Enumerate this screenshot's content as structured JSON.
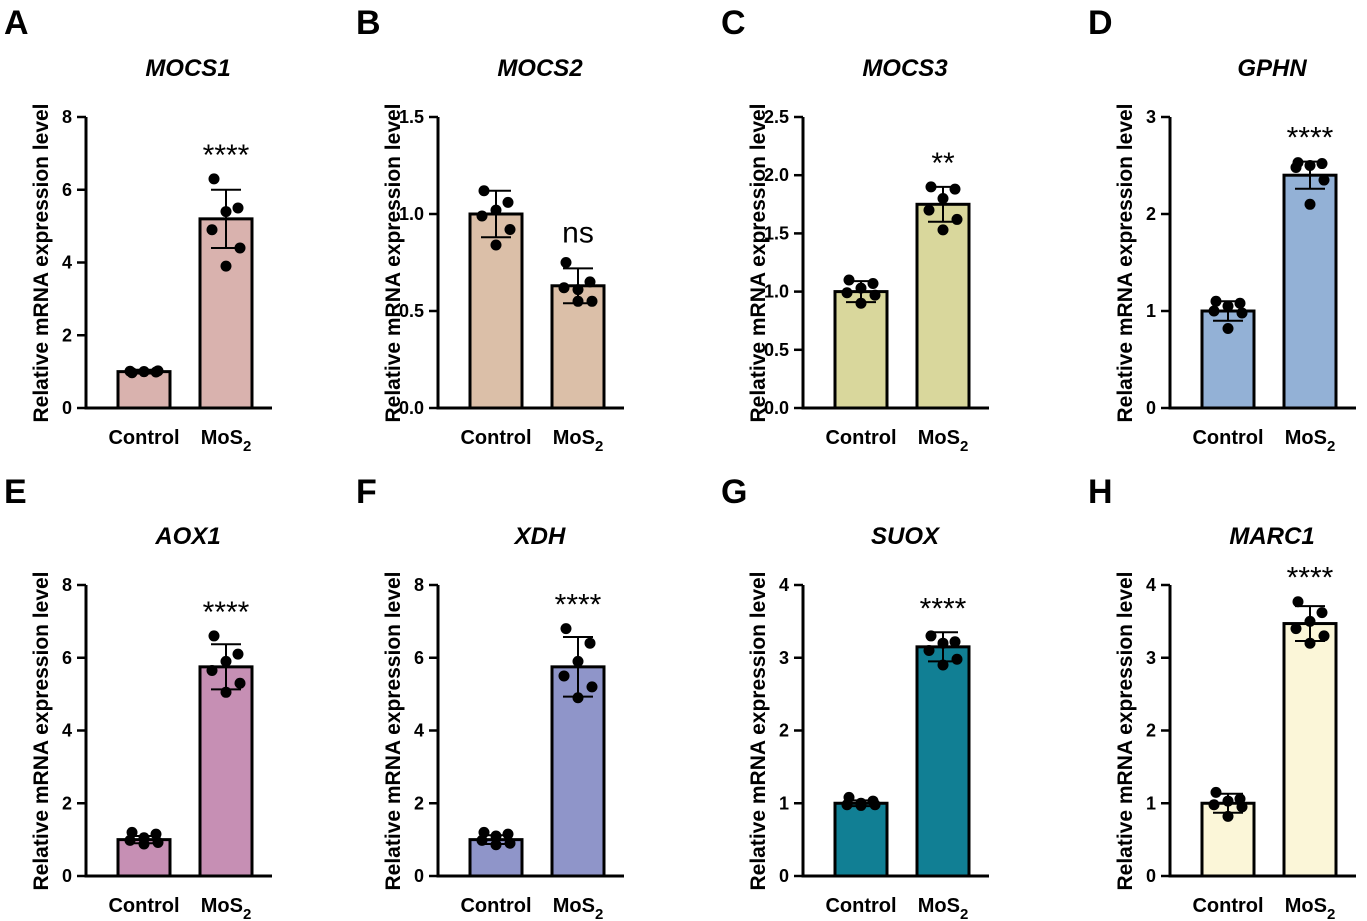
{
  "chart_data": [
    {
      "panel": "A",
      "type": "bar",
      "title": "MOCS1",
      "ylabel": "Relative mRNA expression level",
      "ylim": [
        0,
        8
      ],
      "yticks": [
        "0",
        "2",
        "4",
        "6",
        "8"
      ],
      "categories": [
        "Control",
        "MoS2"
      ],
      "values": [
        1.0,
        5.2
      ],
      "sd": [
        0.05,
        0.8
      ],
      "points": [
        [
          0.97,
          0.99,
          1.0,
          1.01,
          1.02,
          1.0
        ],
        [
          6.3,
          5.5,
          5.4,
          4.9,
          4.4,
          3.9
        ]
      ],
      "significance": "****",
      "color": "#d9b2ae"
    },
    {
      "panel": "B",
      "type": "bar",
      "title": "MOCS2",
      "ylabel": "Relative mRNA expression level",
      "ylim": [
        0,
        1.5
      ],
      "yticks": [
        "0.0",
        "0.5",
        "1.0",
        "1.5"
      ],
      "categories": [
        "Control",
        "MoS2"
      ],
      "values": [
        1.0,
        0.63
      ],
      "sd": [
        0.12,
        0.09
      ],
      "points": [
        [
          1.12,
          1.06,
          1.02,
          0.99,
          0.92,
          0.84
        ],
        [
          0.75,
          0.65,
          0.61,
          0.62,
          0.55,
          0.55
        ]
      ],
      "significance": "ns",
      "color": "#dbbfa8"
    },
    {
      "panel": "C",
      "type": "bar",
      "title": "MOCS3",
      "ylabel": "Relative mRNA expression level",
      "ylim": [
        0,
        2.5
      ],
      "yticks": [
        "0.0",
        "0.5",
        "1.0",
        "1.5",
        "2.0",
        "2.5"
      ],
      "categories": [
        "Control",
        "MoS2"
      ],
      "values": [
        1.0,
        1.75
      ],
      "sd": [
        0.09,
        0.15
      ],
      "points": [
        [
          1.1,
          1.07,
          1.03,
          0.99,
          0.97,
          0.9
        ],
        [
          1.9,
          1.88,
          1.8,
          1.7,
          1.62,
          1.53
        ]
      ],
      "significance": "**",
      "color": "#d9d79c"
    },
    {
      "panel": "D",
      "type": "bar",
      "title": "GPHN",
      "ylabel": "Relative mRNA expression level",
      "ylim": [
        0,
        3
      ],
      "yticks": [
        "0",
        "1",
        "2",
        "3"
      ],
      "categories": [
        "Control",
        "MoS2"
      ],
      "values": [
        1.0,
        2.4
      ],
      "sd": [
        0.1,
        0.14
      ],
      "points": [
        [
          1.1,
          1.08,
          1.05,
          1.0,
          0.98,
          0.82
        ],
        [
          2.53,
          2.52,
          2.5,
          2.48,
          2.35,
          2.1
        ]
      ],
      "significance": "****",
      "color": "#93b1d6"
    },
    {
      "panel": "E",
      "type": "bar",
      "title": "AOX1",
      "ylabel": "Relative mRNA expression level",
      "ylim": [
        0,
        8
      ],
      "yticks": [
        "0",
        "2",
        "4",
        "6",
        "8"
      ],
      "categories": [
        "Control",
        "MoS2"
      ],
      "values": [
        1.0,
        5.75
      ],
      "sd": [
        0.1,
        0.62
      ],
      "points": [
        [
          1.2,
          1.15,
          1.05,
          0.98,
          0.92,
          0.88
        ],
        [
          6.6,
          6.1,
          5.9,
          5.65,
          5.3,
          5.05
        ]
      ],
      "significance": "****",
      "color": "#c68fb4"
    },
    {
      "panel": "F",
      "type": "bar",
      "title": "XDH",
      "ylabel": "Relative mRNA expression level",
      "ylim": [
        0,
        8
      ],
      "yticks": [
        "0",
        "2",
        "4",
        "6",
        "8"
      ],
      "categories": [
        "Control",
        "MoS2"
      ],
      "values": [
        1.0,
        5.75
      ],
      "sd": [
        0.12,
        0.82
      ],
      "points": [
        [
          1.2,
          1.15,
          1.1,
          0.98,
          0.9,
          0.86
        ],
        [
          6.8,
          6.4,
          5.9,
          5.5,
          5.2,
          4.9
        ]
      ],
      "significance": "****",
      "color": "#8f95c9"
    },
    {
      "panel": "G",
      "type": "bar",
      "title": "SUOX",
      "ylabel": "Relative mRNA expression level",
      "ylim": [
        0,
        4
      ],
      "yticks": [
        "0",
        "1",
        "2",
        "3",
        "4"
      ],
      "categories": [
        "Control",
        "MoS2"
      ],
      "values": [
        1.0,
        3.15
      ],
      "sd": [
        0.04,
        0.2
      ],
      "points": [
        [
          1.08,
          1.03,
          1.0,
          0.98,
          0.98,
          0.97
        ],
        [
          3.3,
          3.22,
          3.2,
          3.1,
          2.98,
          2.9
        ]
      ],
      "significance": "****",
      "color": "#117f94"
    },
    {
      "panel": "H",
      "type": "bar",
      "title": "MARC1",
      "ylabel": "Relative mRNA expression level",
      "ylim": [
        0,
        4
      ],
      "yticks": [
        "0",
        "1",
        "2",
        "3",
        "4"
      ],
      "categories": [
        "Control",
        "MoS2"
      ],
      "values": [
        1.0,
        3.47
      ],
      "sd": [
        0.13,
        0.24
      ],
      "points": [
        [
          1.15,
          1.06,
          1.03,
          0.98,
          0.95,
          0.82
        ],
        [
          3.77,
          3.62,
          3.5,
          3.4,
          3.3,
          3.2
        ]
      ],
      "significance": "****",
      "color": "#fbf6d8"
    }
  ]
}
